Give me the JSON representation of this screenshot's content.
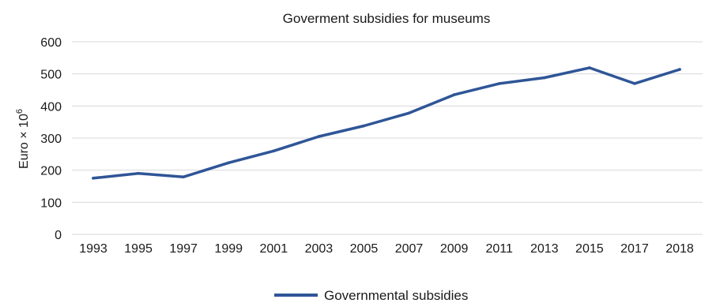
{
  "chart_data": {
    "type": "line",
    "title": "Goverment subsidies for museums",
    "xlabel": "",
    "ylabel": {
      "text": "Euro × 10",
      "superscript": "6"
    },
    "categories": [
      "1993",
      "1995",
      "1997",
      "1999",
      "2001",
      "2003",
      "2005",
      "2007",
      "2009",
      "2011",
      "2013",
      "2015",
      "2017",
      "2018"
    ],
    "series": [
      {
        "name": "Governmental subsidies",
        "color": "#2f5597",
        "values": [
          175,
          190,
          179,
          223,
          260,
          305,
          338,
          378,
          435,
          470,
          488,
          519,
          470,
          514
        ]
      }
    ],
    "ylim": [
      0,
      600
    ],
    "yticks": [
      "0",
      "100",
      "200",
      "300",
      "400",
      "500",
      "600"
    ],
    "grid": true,
    "gridColor": "#d9d9d9",
    "legend": "bottom-center"
  }
}
